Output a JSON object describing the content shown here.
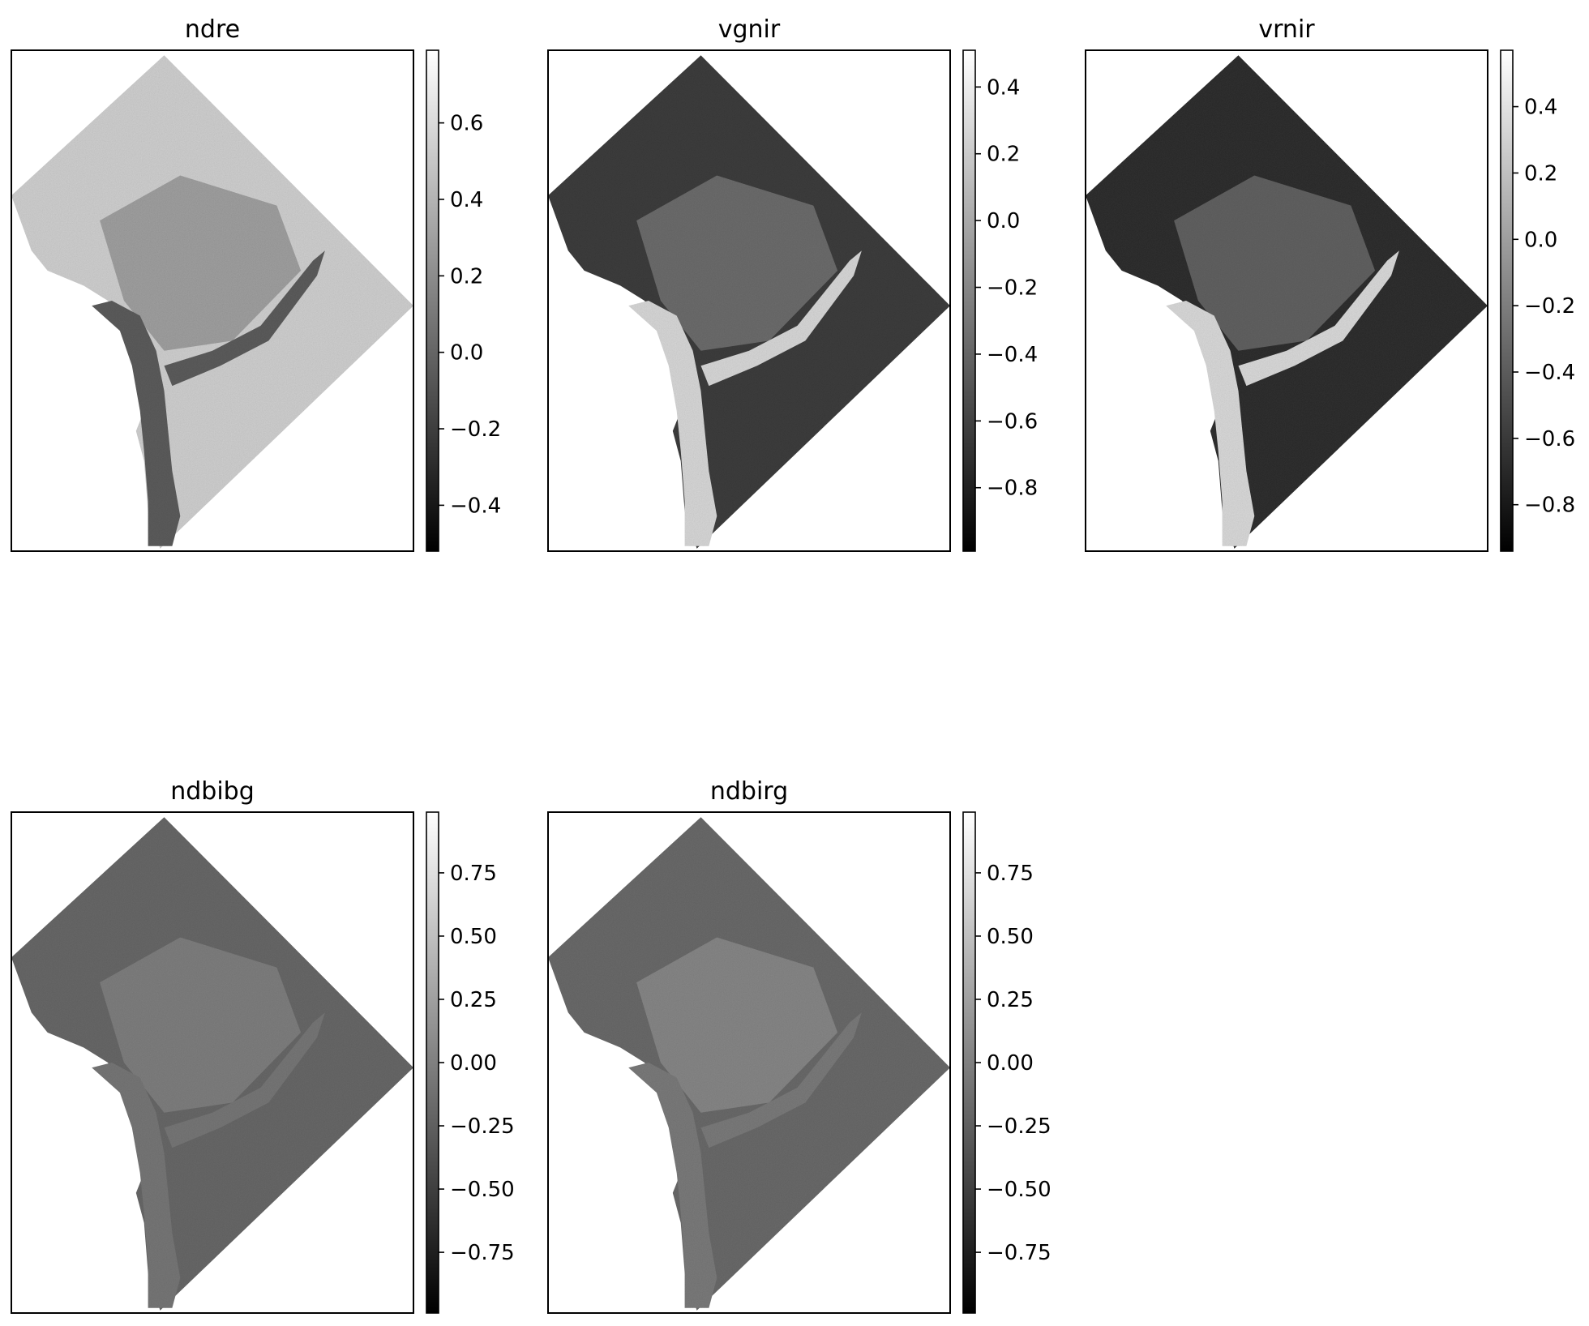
{
  "chart_data": [
    {
      "type": "heatmap",
      "title": "ndre",
      "colormap": "gray",
      "colorbar": {
        "vmin": -0.52,
        "vmax": 0.79,
        "ticks": [
          0.6,
          0.4,
          0.2,
          0.0,
          -0.2,
          -0.4
        ],
        "tick_labels": [
          "0.6",
          "0.4",
          "0.2",
          "0.0",
          "−0.2",
          "−0.4"
        ]
      },
      "tone": {
        "land": "#d4d4d4",
        "urban": "#9a9a9a",
        "water": "#5e5e5e"
      }
    },
    {
      "type": "heatmap",
      "title": "vgnir",
      "colormap": "gray",
      "colorbar": {
        "vmin": -0.99,
        "vmax": 0.51,
        "ticks": [
          0.4,
          0.2,
          0.0,
          -0.2,
          -0.4,
          -0.6,
          -0.8
        ],
        "tick_labels": [
          "0.4",
          "0.2",
          "0.0",
          "−0.2",
          "−0.4",
          "−0.6",
          "−0.8"
        ]
      },
      "tone": {
        "land": "#3e3e3e",
        "urban": "#777777",
        "water": "#dcdcdc"
      }
    },
    {
      "type": "heatmap",
      "title": "vrnir",
      "colormap": "gray",
      "colorbar": {
        "vmin": -0.94,
        "vmax": 0.57,
        "ticks": [
          0.4,
          0.2,
          0.0,
          -0.2,
          -0.4,
          -0.6,
          -0.8
        ],
        "tick_labels": [
          "0.4",
          "0.2",
          "0.0",
          "−0.2",
          "−0.4",
          "−0.6",
          "−0.8"
        ]
      },
      "tone": {
        "land": "#303030",
        "urban": "#6c6c6c",
        "water": "#dedede"
      }
    },
    {
      "type": "heatmap",
      "title": "ndbibg",
      "colormap": "gray",
      "colorbar": {
        "vmin": -0.99,
        "vmax": 0.99,
        "ticks": [
          0.75,
          0.5,
          0.25,
          0.0,
          -0.25,
          -0.5,
          -0.75
        ],
        "tick_labels": [
          "0.75",
          "0.50",
          "0.25",
          "0.00",
          "−0.25",
          "−0.50",
          "−0.75"
        ]
      },
      "tone": {
        "land": "#6a6a6a",
        "urban": "#858585",
        "water": "#797979"
      }
    },
    {
      "type": "heatmap",
      "title": "ndbirg",
      "colormap": "gray",
      "colorbar": {
        "vmin": -0.99,
        "vmax": 0.99,
        "ticks": [
          0.75,
          0.5,
          0.25,
          0.0,
          -0.25,
          -0.5,
          -0.75
        ],
        "tick_labels": [
          "0.75",
          "0.50",
          "0.25",
          "0.00",
          "−0.25",
          "−0.50",
          "−0.75"
        ]
      },
      "tone": {
        "land": "#6c6c6c",
        "urban": "#8e8e8e",
        "water": "#7d7d7d"
      }
    }
  ]
}
